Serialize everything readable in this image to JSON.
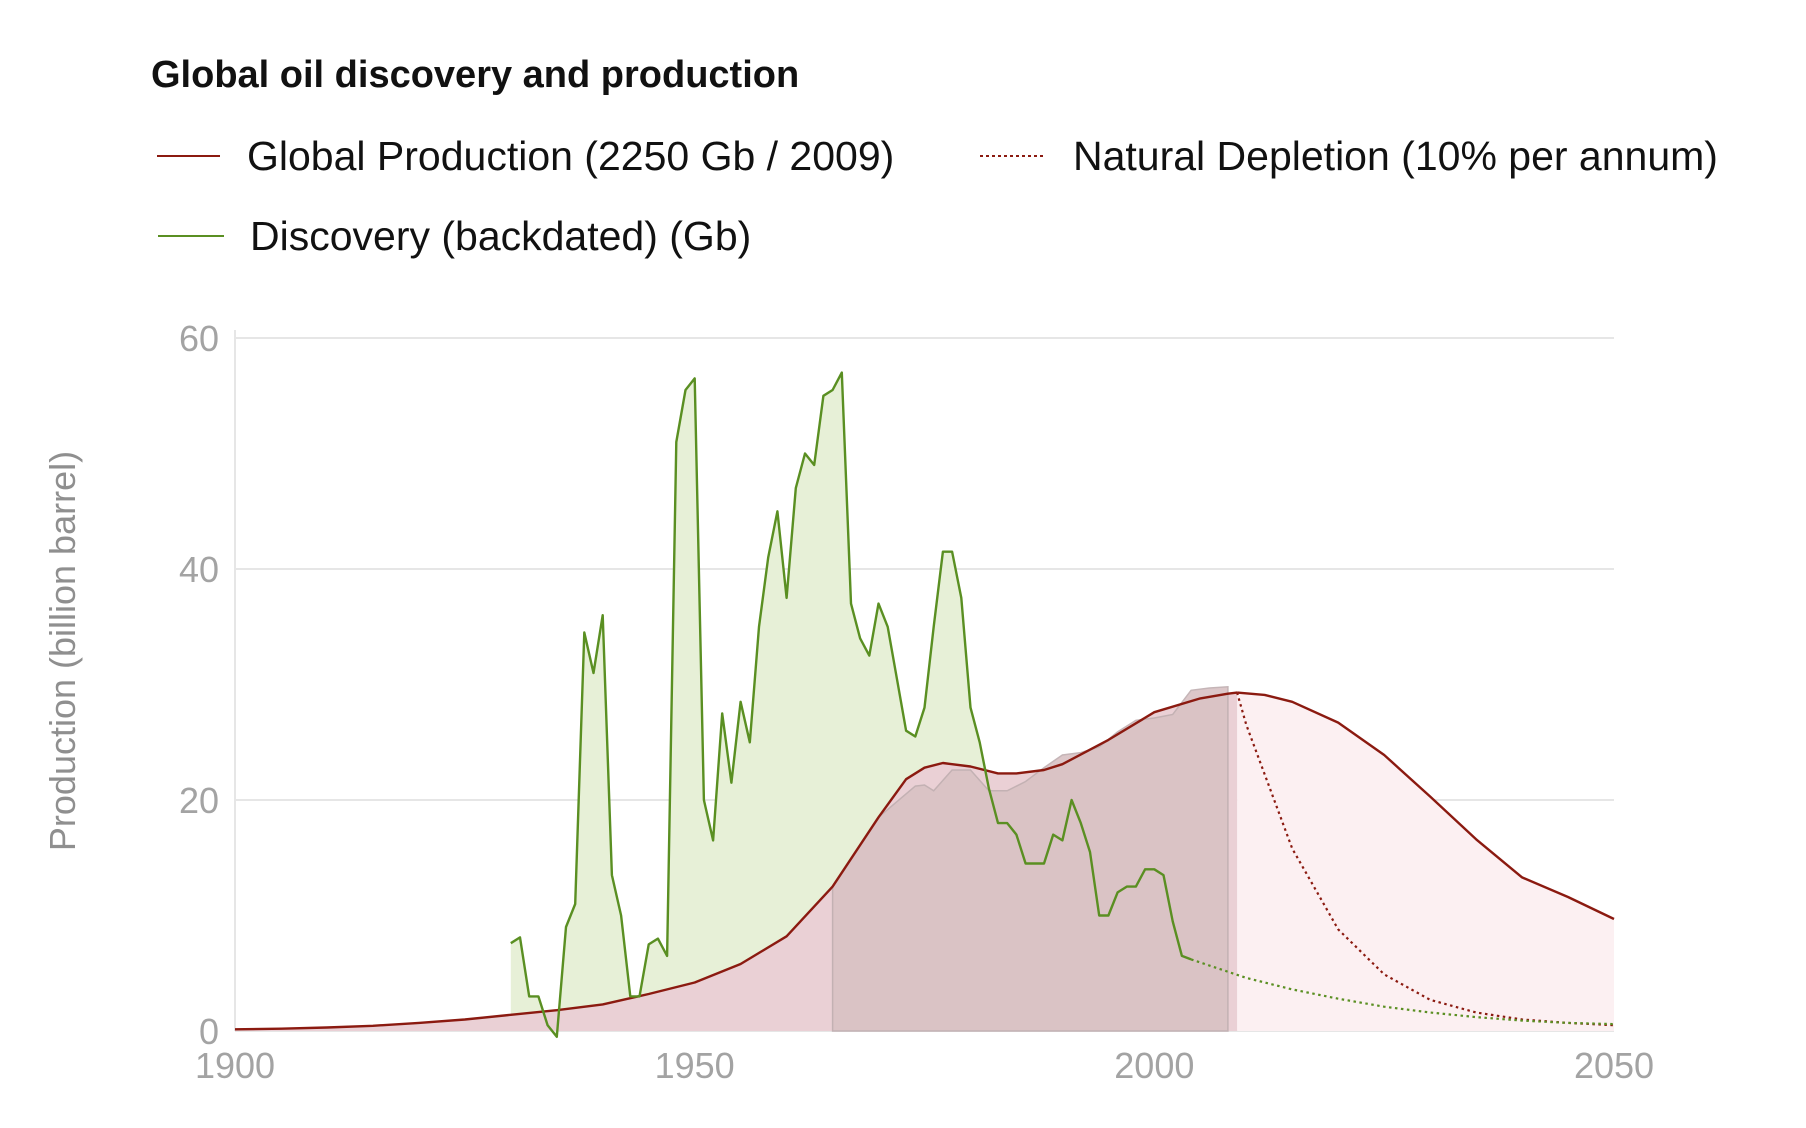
{
  "chart_data": {
    "type": "area",
    "title": "Global oil discovery and production",
    "xlabel": "",
    "ylabel": "Production (billion barrel)",
    "xlim": [
      1900,
      2050
    ],
    "ylim": [
      0,
      60
    ],
    "x_ticks": [
      "1900",
      "1950",
      "2000",
      "2050"
    ],
    "y_ticks": [
      "0",
      "20",
      "40",
      "60"
    ],
    "grid": true,
    "legend_position": "top-left",
    "legend": [
      {
        "label": "Global Production (2250 Gb / 2009)",
        "style": "solid",
        "color": "#8b1a10"
      },
      {
        "label": "Natural Depletion (10% per annum)",
        "style": "dotted",
        "color": "#8b1a10"
      },
      {
        "label": "Discovery (backdated) (Gb)",
        "style": "solid",
        "color": "#5a8f22"
      }
    ],
    "series": [
      {
        "name": "Global Production (2250 Gb / 2009)",
        "color": "#8b1a10",
        "fill": "#ead0d5",
        "x": [
          1900,
          1905,
          1910,
          1915,
          1920,
          1925,
          1930,
          1935,
          1940,
          1945,
          1950,
          1955,
          1960,
          1965,
          1970,
          1973,
          1975,
          1977,
          1978,
          1980,
          1983,
          1985,
          1988,
          1990,
          1995,
          2000,
          2005,
          2008,
          2009
        ],
        "y": [
          0.15,
          0.2,
          0.3,
          0.45,
          0.7,
          1.0,
          1.4,
          1.8,
          2.3,
          3.2,
          4.2,
          5.8,
          8.2,
          12.5,
          18.5,
          21.8,
          22.8,
          23.2,
          23.1,
          22.9,
          22.3,
          22.3,
          22.6,
          23.1,
          25.2,
          27.6,
          28.8,
          29.2,
          29.3
        ]
      },
      {
        "name": "Global Production (2250 Gb / 2009) projection",
        "color": "#8b1a10",
        "fill": "#fcf0f2",
        "x": [
          2009,
          2012,
          2015,
          2020,
          2025,
          2030,
          2035,
          2040,
          2045,
          2050
        ],
        "y": [
          29.3,
          29.1,
          28.5,
          26.7,
          23.9,
          20.3,
          16.6,
          13.3,
          11.6,
          9.7
        ]
      },
      {
        "name": "Natural Depletion (10% per annum)",
        "color": "#8b1a10",
        "style": "dotted",
        "x": [
          2009,
          2010,
          2015,
          2020,
          2025,
          2030,
          2035,
          2040,
          2045,
          2050
        ],
        "y": [
          29.3,
          26.5,
          15.8,
          8.8,
          4.9,
          2.7,
          1.6,
          1.0,
          0.7,
          0.5
        ]
      },
      {
        "name": "Discovery (backdated) (Gb)",
        "color": "#5a8f22",
        "fill": "#e7f0d7",
        "x": [
          1930,
          1931,
          1932,
          1933,
          1934,
          1935,
          1936,
          1937,
          1938,
          1939,
          1940,
          1941,
          1942,
          1943,
          1944,
          1945,
          1946,
          1947,
          1948,
          1949,
          1950,
          1951,
          1952,
          1953,
          1954,
          1955,
          1956,
          1957,
          1958,
          1959,
          1960,
          1961,
          1962,
          1963,
          1964,
          1965,
          1966,
          1967,
          1968,
          1969,
          1970,
          1971,
          1972,
          1973,
          1974,
          1975,
          1976,
          1977,
          1978,
          1979,
          1980,
          1981,
          1982,
          1983,
          1984,
          1985,
          1986,
          1987,
          1988,
          1989,
          1990,
          1991,
          1992,
          1993,
          1994,
          1995,
          1996,
          1997,
          1998,
          1999,
          2000,
          2001,
          2002,
          2003,
          2004
        ],
        "y": [
          7.6,
          8.1,
          3.0,
          3.0,
          0.5,
          -0.5,
          9.0,
          11.0,
          34.5,
          31.0,
          36.0,
          13.5,
          10.0,
          3.0,
          3.0,
          7.5,
          8.0,
          6.5,
          51.0,
          55.5,
          56.5,
          20.0,
          16.5,
          27.5,
          21.5,
          28.5,
          25.0,
          35.0,
          41.0,
          45.0,
          37.5,
          47.0,
          50.0,
          49.0,
          55.0,
          55.5,
          57.0,
          37.0,
          34.0,
          32.5,
          37.0,
          35.0,
          30.5,
          26.0,
          25.5,
          28.0,
          35.0,
          41.5,
          41.5,
          37.5,
          28.0,
          25.0,
          21.0,
          18.0,
          18.0,
          17.0,
          14.5,
          14.5,
          14.5,
          17.0,
          16.5,
          20.0,
          18.0,
          15.5,
          10.0,
          10.0,
          12.0,
          12.5,
          12.5,
          14.0,
          14.0,
          13.5,
          9.5,
          6.5,
          6.2
        ]
      },
      {
        "name": "Discovery projection",
        "color": "#5a8f22",
        "style": "dotted",
        "x": [
          2004,
          2010,
          2015,
          2020,
          2025,
          2030,
          2035,
          2040,
          2045,
          2050
        ],
        "y": [
          6.2,
          4.6,
          3.6,
          2.8,
          2.1,
          1.6,
          1.2,
          0.9,
          0.7,
          0.6
        ]
      },
      {
        "name": "Production with discovery envelope",
        "color": "#bfaeb0",
        "fill": "#d9c2c4",
        "x": [
          1965,
          1970,
          1974,
          1975,
          1976,
          1978,
          1980,
          1982,
          1984,
          1986,
          1988,
          1990,
          1992,
          1994,
          1996,
          1998,
          2000,
          2002,
          2004,
          2006,
          2008
        ],
        "y": [
          12.5,
          18.5,
          21.2,
          21.3,
          20.8,
          22.6,
          22.6,
          20.8,
          20.8,
          21.6,
          22.8,
          23.9,
          24.1,
          24.6,
          25.9,
          26.9,
          27.1,
          27.4,
          29.5,
          29.7,
          29.8
        ]
      }
    ]
  }
}
